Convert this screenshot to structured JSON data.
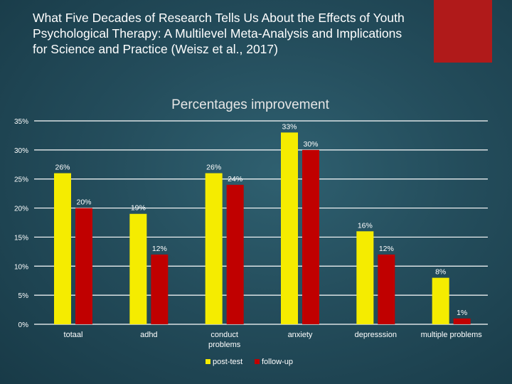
{
  "slide": {
    "title": "What Five Decades of Research Tells Us About the Effects of Youth Psychological Therapy: A Multilevel Meta-Analysis and Implications for Science and Practice (Weisz et al., 2017)"
  },
  "colors": {
    "accent": "#b01a1a",
    "post_test": "#f5ec00",
    "follow_up": "#c00000",
    "grid": "#ffffff",
    "text": "#ffffff"
  },
  "chart_data": {
    "type": "bar",
    "title": "Percentages improvement",
    "categories": [
      "totaal",
      "adhd",
      "conduct problems",
      "anxiety",
      "depresssion",
      "multiple problems"
    ],
    "series": [
      {
        "name": "post-test",
        "values": [
          26,
          19,
          26,
          33,
          16,
          8
        ],
        "labels": [
          "26%",
          "19%",
          "26%",
          "33%",
          "16%",
          "8%"
        ]
      },
      {
        "name": "follow-up",
        "values": [
          20,
          12,
          24,
          30,
          12,
          1
        ],
        "labels": [
          "20%",
          "12%",
          "24%",
          "30%",
          "12%",
          "1%"
        ]
      }
    ],
    "ylim": [
      0,
      35
    ],
    "yticks": [
      0,
      5,
      10,
      15,
      20,
      25,
      30,
      35
    ],
    "ytick_labels": [
      "0%",
      "5%",
      "10%",
      "15%",
      "20%",
      "25%",
      "30%",
      "35%"
    ],
    "grid": true,
    "legend": "bottom"
  }
}
